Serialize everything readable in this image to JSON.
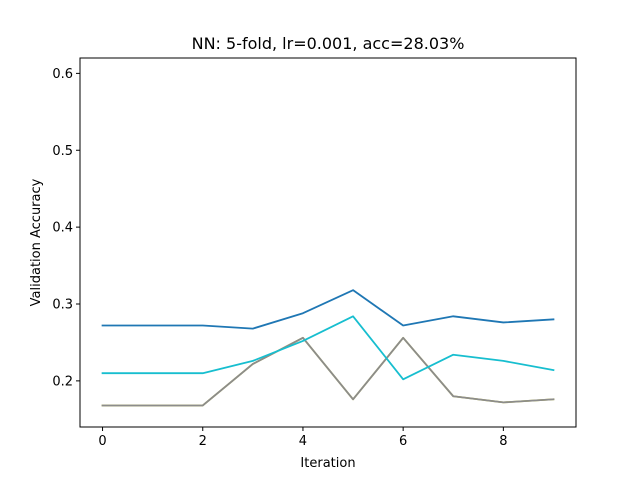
{
  "chart_data": {
    "type": "line",
    "title": "NN: 5-fold, lr=0.001, acc=28.03%",
    "xlabel": "Iteration",
    "ylabel": "Validation Accuracy",
    "xlim": [
      -0.45,
      9.45
    ],
    "ylim": [
      0.14,
      0.62
    ],
    "xticks": [
      0,
      2,
      4,
      6,
      8
    ],
    "yticks": [
      0.2,
      0.3,
      0.4,
      0.5,
      0.6
    ],
    "grid": false,
    "x": [
      0,
      1,
      2,
      3,
      4,
      5,
      6,
      7,
      8,
      9
    ],
    "series": [
      {
        "color": "#1f77b4",
        "values": [
          0.272,
          0.272,
          0.272,
          0.268,
          0.288,
          0.318,
          0.272,
          0.284,
          0.276,
          0.28
        ]
      },
      {
        "color": "#bcbd22",
        "values": [
          0.168,
          0.168,
          0.168,
          0.222,
          0.256,
          0.176,
          0.256,
          0.18,
          0.172,
          0.176
        ]
      },
      {
        "color": "#8c8c8c",
        "values": [
          0.168,
          0.168,
          0.168,
          0.222,
          0.256,
          0.176,
          0.256,
          0.18,
          0.172,
          0.176
        ]
      },
      {
        "color": "#17becf",
        "values": [
          0.21,
          0.21,
          0.21,
          0.226,
          0.252,
          0.284,
          0.202,
          0.234,
          0.226,
          0.214
        ]
      }
    ]
  }
}
